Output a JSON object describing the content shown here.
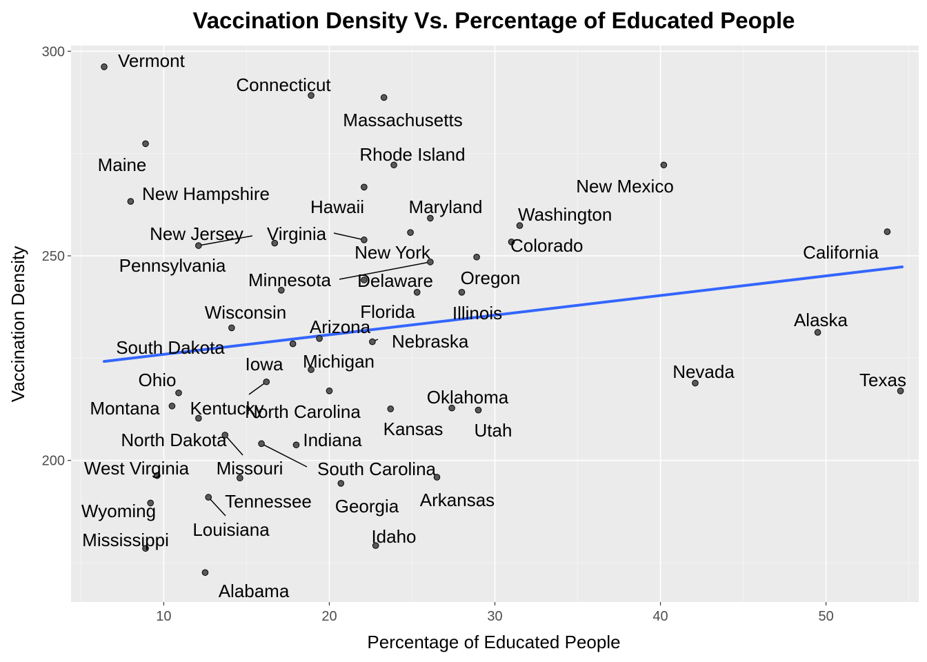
{
  "chart_data": {
    "type": "scatter",
    "title": "Vaccination Density Vs. Percentage of Educated People",
    "xlabel": "Percentage of Educated People",
    "ylabel": "Vaccination Density",
    "xlim": [
      4.4,
      55.6
    ],
    "ylim": [
      165.4,
      301.4
    ],
    "x_ticks": [
      10,
      20,
      30,
      40,
      50
    ],
    "y_ticks": [
      200,
      250,
      300
    ],
    "grid": true,
    "colors": {
      "panel": "#ebebeb",
      "point": "#595959",
      "trend": "#3366ff"
    },
    "trend_line": {
      "x": [
        6.4,
        54.6
      ],
      "y": [
        224.2,
        247.3
      ]
    },
    "points": [
      {
        "label": "Vermont",
        "x": 6.4,
        "y": 296.2
      },
      {
        "label": "Connecticut",
        "x": 18.9,
        "y": 289.2
      },
      {
        "label": "Massachusetts",
        "x": 23.3,
        "y": 288.7
      },
      {
        "label": "Maine",
        "x": 8.9,
        "y": 277.4
      },
      {
        "label": "Rhode Island",
        "x": 23.9,
        "y": 272.2
      },
      {
        "label": "New Mexico",
        "x": 40.2,
        "y": 272.2
      },
      {
        "label": "Hawaii",
        "x": 22.1,
        "y": 266.8
      },
      {
        "label": "New Hampshire",
        "x": 8.0,
        "y": 263.3
      },
      {
        "label": "Maryland",
        "x": 26.1,
        "y": 259.2
      },
      {
        "label": "Washington",
        "x": 31.5,
        "y": 257.4
      },
      {
        "label": "California",
        "x": 53.7,
        "y": 255.9
      },
      {
        "label": "Virginia",
        "x": 22.1,
        "y": 253.9
      },
      {
        "label": "New Jersey",
        "x": 12.1,
        "y": 252.5
      },
      {
        "label": "New York",
        "x": 24.9,
        "y": 255.7
      },
      {
        "label": "Colorado",
        "x": 31.0,
        "y": 253.4
      },
      {
        "label": "Pennsylvania",
        "x": 16.7,
        "y": 253.1
      },
      {
        "label": "Oregon",
        "x": 28.9,
        "y": 249.7
      },
      {
        "label": "Delaware",
        "x": 26.1,
        "y": 248.5
      },
      {
        "label": "Minnesota",
        "x": 22.1,
        "y": 244.1
      },
      {
        "label": "Florida",
        "x": 25.3,
        "y": 241.1
      },
      {
        "label": "Illinois",
        "x": 28.0,
        "y": 241.1
      },
      {
        "label": "Wisconsin",
        "x": 17.1,
        "y": 241.6
      },
      {
        "label": "Alaska",
        "x": 49.5,
        "y": 231.3
      },
      {
        "label": "Arizona",
        "x": 19.4,
        "y": 229.8
      },
      {
        "label": "Nebraska",
        "x": 22.6,
        "y": 229.0
      },
      {
        "label": "South Dakota",
        "x": 14.1,
        "y": 232.4
      },
      {
        "label": "Michigan",
        "x": 17.8,
        "y": 228.5
      },
      {
        "label": "Iowa",
        "x": 18.9,
        "y": 222.2
      },
      {
        "label": "Nevada",
        "x": 42.1,
        "y": 218.9
      },
      {
        "label": "Texas",
        "x": 54.5,
        "y": 217.0
      },
      {
        "label": "Ohio",
        "x": 10.9,
        "y": 216.5
      },
      {
        "label": "North Carolina",
        "x": 20.0,
        "y": 217.0
      },
      {
        "label": "Kentucky",
        "x": 16.2,
        "y": 219.2
      },
      {
        "label": "Montana",
        "x": 10.5,
        "y": 213.3
      },
      {
        "label": "Oklahoma",
        "x": 27.4,
        "y": 212.8
      },
      {
        "label": "Kansas",
        "x": 23.7,
        "y": 212.6
      },
      {
        "label": "Utah",
        "x": 29.0,
        "y": 212.3
      },
      {
        "label": "North Dakota",
        "x": 12.1,
        "y": 210.3
      },
      {
        "label": "Indiana",
        "x": 18.0,
        "y": 203.8
      },
      {
        "label": "South Carolina",
        "x": 15.9,
        "y": 204.1
      },
      {
        "label": "Missouri",
        "x": 13.7,
        "y": 206.2
      },
      {
        "label": "West Virginia",
        "x": 9.6,
        "y": 196.3
      },
      {
        "label": "Tennessee",
        "x": 14.6,
        "y": 195.7
      },
      {
        "label": "Arkansas",
        "x": 26.5,
        "y": 195.9
      },
      {
        "label": "Georgia",
        "x": 20.7,
        "y": 194.4
      },
      {
        "label": "Louisiana",
        "x": 12.7,
        "y": 191.0
      },
      {
        "label": "Wyoming",
        "x": 9.2,
        "y": 189.6
      },
      {
        "label": "Idaho",
        "x": 22.8,
        "y": 179.2
      },
      {
        "label": "Mississippi",
        "x": 8.9,
        "y": 178.5
      },
      {
        "label": "Alabama",
        "x": 12.5,
        "y": 172.6
      }
    ]
  }
}
